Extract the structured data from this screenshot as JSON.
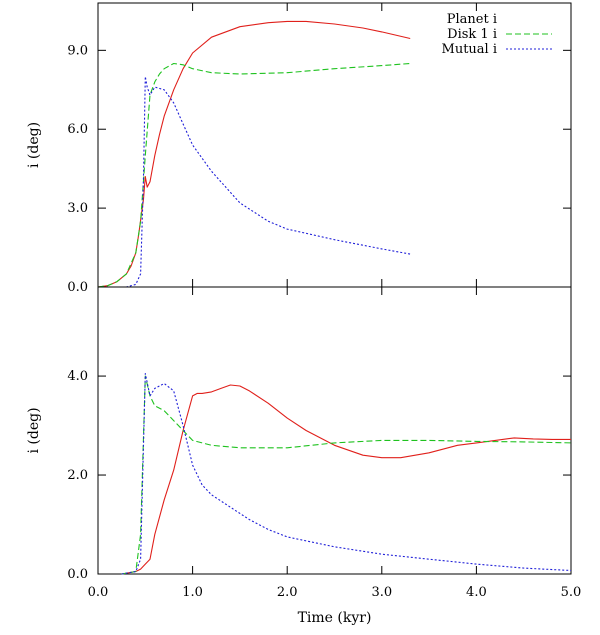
{
  "chart_data": [
    {
      "type": "line",
      "panel": "top",
      "xlabel": "",
      "ylabel": "i (deg)",
      "xlim": [
        0.0,
        5.0
      ],
      "ylim": [
        0.0,
        10.8
      ],
      "yticks": [
        0.0,
        3.0,
        6.0,
        9.0
      ],
      "ytick_labels": [
        "0.0",
        "3.0",
        "6.0",
        "9.0"
      ],
      "xticks": [
        0.0,
        1.0,
        2.0,
        3.0,
        4.0,
        5.0
      ],
      "legend_position": "top-right",
      "series": [
        {
          "name": "Planet i",
          "color": "#e0201b",
          "dash": "solid",
          "x": [
            0.0,
            0.1,
            0.2,
            0.3,
            0.35,
            0.4,
            0.43,
            0.46,
            0.48,
            0.5,
            0.52,
            0.55,
            0.6,
            0.65,
            0.7,
            0.8,
            0.9,
            1.0,
            1.2,
            1.5,
            1.8,
            2.0,
            2.2,
            2.5,
            2.8,
            3.0,
            3.3
          ],
          "values": [
            0.0,
            0.05,
            0.2,
            0.5,
            0.8,
            1.3,
            2.0,
            2.8,
            3.3,
            4.2,
            3.8,
            4.0,
            5.0,
            5.8,
            6.5,
            7.5,
            8.3,
            8.9,
            9.5,
            9.9,
            10.05,
            10.1,
            10.1,
            10.0,
            9.85,
            9.7,
            9.45
          ]
        },
        {
          "name": "Disk 1 i",
          "color": "#1fc21f",
          "dash": "6,3",
          "x": [
            0.0,
            0.1,
            0.2,
            0.3,
            0.4,
            0.45,
            0.5,
            0.55,
            0.6,
            0.65,
            0.7,
            0.8,
            0.9,
            1.0,
            1.2,
            1.5,
            2.0,
            2.5,
            3.0,
            3.3
          ],
          "values": [
            0.0,
            0.05,
            0.2,
            0.5,
            1.3,
            2.5,
            5.0,
            7.3,
            7.8,
            8.1,
            8.3,
            8.5,
            8.45,
            8.3,
            8.15,
            8.1,
            8.15,
            8.3,
            8.42,
            8.5
          ]
        },
        {
          "name": "Mutual i",
          "color": "#1f1fd8",
          "dash": "2,2",
          "x": [
            0.0,
            0.3,
            0.4,
            0.45,
            0.48,
            0.5,
            0.52,
            0.55,
            0.6,
            0.7,
            0.8,
            0.9,
            1.0,
            1.2,
            1.5,
            1.8,
            2.0,
            2.5,
            3.0,
            3.3
          ],
          "values": [
            0.0,
            0.0,
            0.1,
            0.5,
            4.0,
            8.0,
            7.6,
            7.3,
            7.6,
            7.5,
            7.0,
            6.2,
            5.4,
            4.4,
            3.2,
            2.5,
            2.2,
            1.8,
            1.45,
            1.25
          ]
        }
      ]
    },
    {
      "type": "line",
      "panel": "bottom",
      "xlabel": "Time (kyr)",
      "ylabel": "i (deg)",
      "xlim": [
        0.0,
        5.0
      ],
      "ylim": [
        0.0,
        5.8
      ],
      "yticks": [
        0.0,
        2.0,
        4.0
      ],
      "ytick_labels": [
        "0.0",
        "2.0",
        "4.0"
      ],
      "xticks": [
        0.0,
        1.0,
        2.0,
        3.0,
        4.0,
        5.0
      ],
      "xtick_labels": [
        "0.0",
        "1.0",
        "2.0",
        "3.0",
        "4.0",
        "5.0"
      ],
      "series": [
        {
          "name": "Planet i",
          "color": "#e0201b",
          "dash": "solid",
          "x": [
            0.25,
            0.4,
            0.45,
            0.5,
            0.55,
            0.6,
            0.7,
            0.8,
            0.9,
            1.0,
            1.05,
            1.1,
            1.2,
            1.3,
            1.4,
            1.5,
            1.6,
            1.8,
            2.0,
            2.2,
            2.5,
            2.8,
            3.0,
            3.2,
            3.5,
            3.8,
            4.0,
            4.2,
            4.4,
            4.6,
            4.8,
            5.0
          ],
          "values": [
            0.0,
            0.05,
            0.1,
            0.2,
            0.3,
            0.8,
            1.5,
            2.1,
            2.9,
            3.6,
            3.65,
            3.65,
            3.68,
            3.75,
            3.82,
            3.8,
            3.7,
            3.45,
            3.15,
            2.9,
            2.6,
            2.4,
            2.35,
            2.35,
            2.45,
            2.6,
            2.65,
            2.7,
            2.75,
            2.73,
            2.72,
            2.72
          ]
        },
        {
          "name": "Disk 1 i",
          "color": "#1fc21f",
          "dash": "6,3",
          "x": [
            0.25,
            0.4,
            0.45,
            0.5,
            0.55,
            0.6,
            0.7,
            0.8,
            0.9,
            1.0,
            1.2,
            1.5,
            2.0,
            2.5,
            3.0,
            3.5,
            4.0,
            4.5,
            5.0
          ],
          "values": [
            0.0,
            0.05,
            0.8,
            4.0,
            3.6,
            3.4,
            3.3,
            3.1,
            2.9,
            2.7,
            2.6,
            2.55,
            2.55,
            2.65,
            2.7,
            2.7,
            2.68,
            2.67,
            2.65
          ]
        },
        {
          "name": "Mutual i",
          "color": "#1f1fd8",
          "dash": "2,2",
          "x": [
            0.25,
            0.4,
            0.45,
            0.5,
            0.55,
            0.6,
            0.7,
            0.8,
            0.9,
            1.0,
            1.1,
            1.2,
            1.4,
            1.6,
            1.8,
            2.0,
            2.5,
            3.0,
            3.5,
            4.0,
            4.5,
            5.0
          ],
          "values": [
            0.0,
            0.05,
            0.3,
            4.05,
            3.6,
            3.75,
            3.85,
            3.7,
            3.0,
            2.2,
            1.8,
            1.6,
            1.35,
            1.1,
            0.9,
            0.75,
            0.55,
            0.4,
            0.3,
            0.2,
            0.12,
            0.07
          ]
        }
      ]
    }
  ]
}
